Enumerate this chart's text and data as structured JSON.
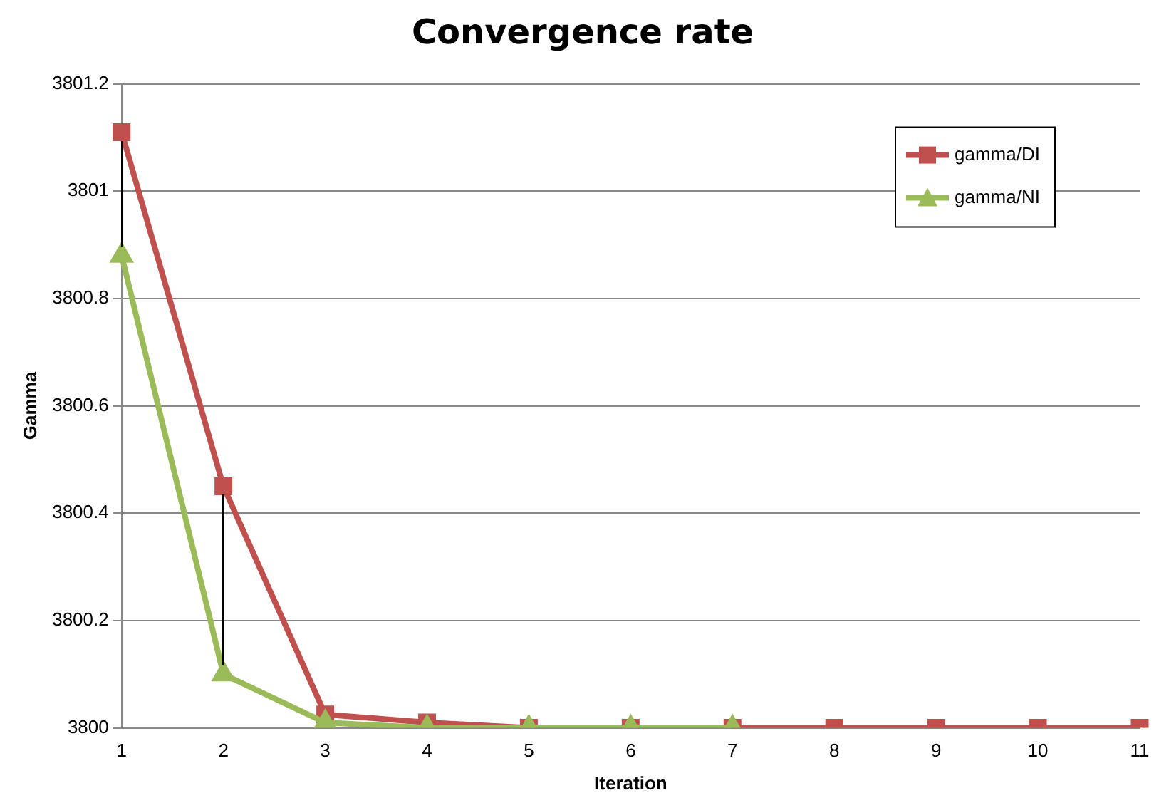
{
  "chart_data": {
    "type": "line",
    "title": "Convergence rate",
    "xlabel": "Iteration",
    "ylabel": "Gamma",
    "categories": [
      "1",
      "2",
      "3",
      "4",
      "5",
      "6",
      "7",
      "8",
      "9",
      "10",
      "11"
    ],
    "series": [
      {
        "name": "gamma/DI",
        "color": "#c0504d",
        "marker": "square",
        "values": [
          3801.11,
          3800.45,
          3800.025,
          3800.01,
          3800,
          3800,
          3800,
          3800,
          3800,
          3800,
          3800
        ]
      },
      {
        "name": "gamma/NI",
        "color": "#9bbb59",
        "marker": "triangle",
        "values": [
          3800.88,
          3800.1,
          3800.01,
          3800,
          3800,
          3800,
          3800,
          null,
          null,
          null,
          null
        ]
      }
    ],
    "ylim": [
      3800,
      3801.2
    ],
    "yticks": [
      3800,
      3800.2,
      3800.4,
      3800.6,
      3800.8,
      3801,
      3801.2
    ],
    "grid": "y",
    "legend": "top right",
    "line_style": "solid"
  }
}
